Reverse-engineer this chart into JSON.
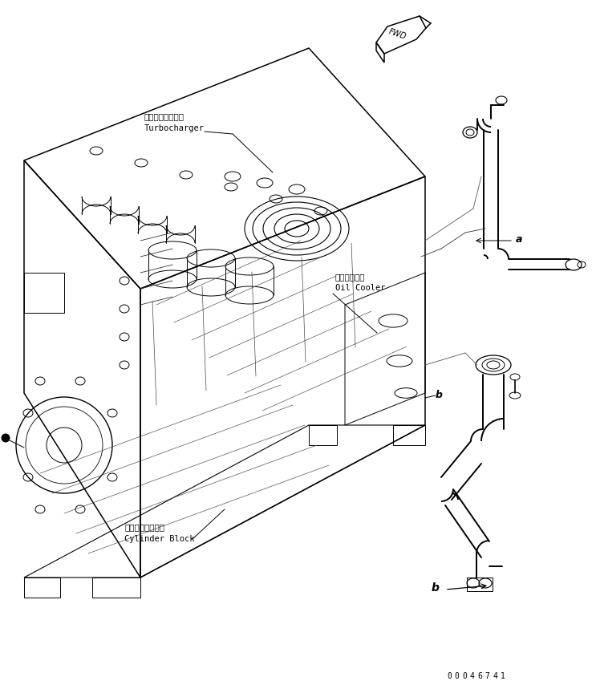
{
  "title": "",
  "background_color": "#ffffff",
  "part_number": "00046741",
  "labels": {
    "turbocharger_ja": "ターボチャージャ",
    "turbocharger_en": "Turbocharger",
    "oil_cooler_ja": "オイルクーラ",
    "oil_cooler_en": "Oil Cooler",
    "cylinder_block_ja": "シリンダブロック",
    "cylinder_block_en": "Cylinder Block"
  },
  "ref_letters": [
    "a",
    "b"
  ],
  "font_size_label": 7.5,
  "font_size_ref": 9,
  "font_size_partnum": 7
}
